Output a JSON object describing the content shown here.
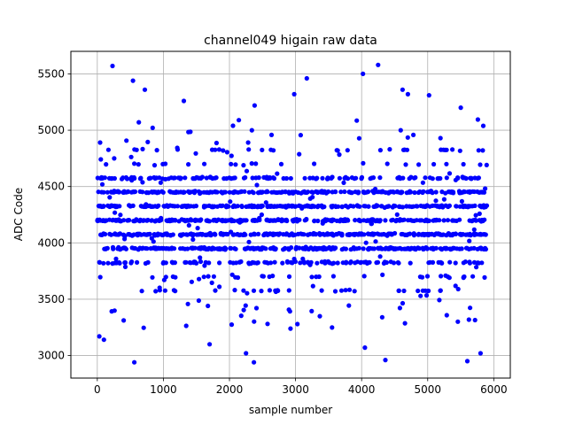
{
  "chart_data": {
    "type": "scatter",
    "title": "channel049 higain raw data",
    "xlabel": "sample number",
    "ylabel": "ADC Code",
    "xlim": [
      -400,
      6250
    ],
    "ylim": [
      2800,
      5700
    ],
    "xticks": [
      0,
      1000,
      2000,
      3000,
      4000,
      5000,
      6000
    ],
    "yticks": [
      3000,
      3500,
      4000,
      4500,
      5000,
      5500
    ],
    "grid": true,
    "marker_color": "#0000ff",
    "n_samples": 5900,
    "bands": [
      {
        "center": 4450,
        "density": "high"
      },
      {
        "center": 4325,
        "density": "high"
      },
      {
        "center": 4200,
        "density": "high"
      },
      {
        "center": 4075,
        "density": "high"
      },
      {
        "center": 3950,
        "density": "high"
      },
      {
        "center": 3825,
        "density": "medium"
      },
      {
        "center": 4575,
        "density": "medium"
      },
      {
        "center": 3700,
        "density": "low"
      },
      {
        "center": 4700,
        "density": "low"
      },
      {
        "center": 3575,
        "density": "low"
      },
      {
        "center": 4825,
        "density": "low"
      }
    ],
    "outliers": [
      {
        "x": 230,
        "y": 5570
      },
      {
        "x": 4250,
        "y": 5580
      },
      {
        "x": 4020,
        "y": 5500
      },
      {
        "x": 3170,
        "y": 5460
      },
      {
        "x": 540,
        "y": 5440
      },
      {
        "x": 4620,
        "y": 5360
      },
      {
        "x": 720,
        "y": 5360
      },
      {
        "x": 4700,
        "y": 5320
      },
      {
        "x": 2980,
        "y": 5320
      },
      {
        "x": 5020,
        "y": 5310
      },
      {
        "x": 1310,
        "y": 5260
      },
      {
        "x": 2380,
        "y": 5220
      },
      {
        "x": 5500,
        "y": 5200
      },
      {
        "x": 560,
        "y": 2940
      },
      {
        "x": 2370,
        "y": 2940
      },
      {
        "x": 4360,
        "y": 2960
      },
      {
        "x": 5600,
        "y": 2950
      },
      {
        "x": 5800,
        "y": 3020
      },
      {
        "x": 2250,
        "y": 3020
      },
      {
        "x": 30,
        "y": 3170
      },
      {
        "x": 100,
        "y": 3140
      },
      {
        "x": 1700,
        "y": 3100
      },
      {
        "x": 4050,
        "y": 3070
      }
    ]
  }
}
